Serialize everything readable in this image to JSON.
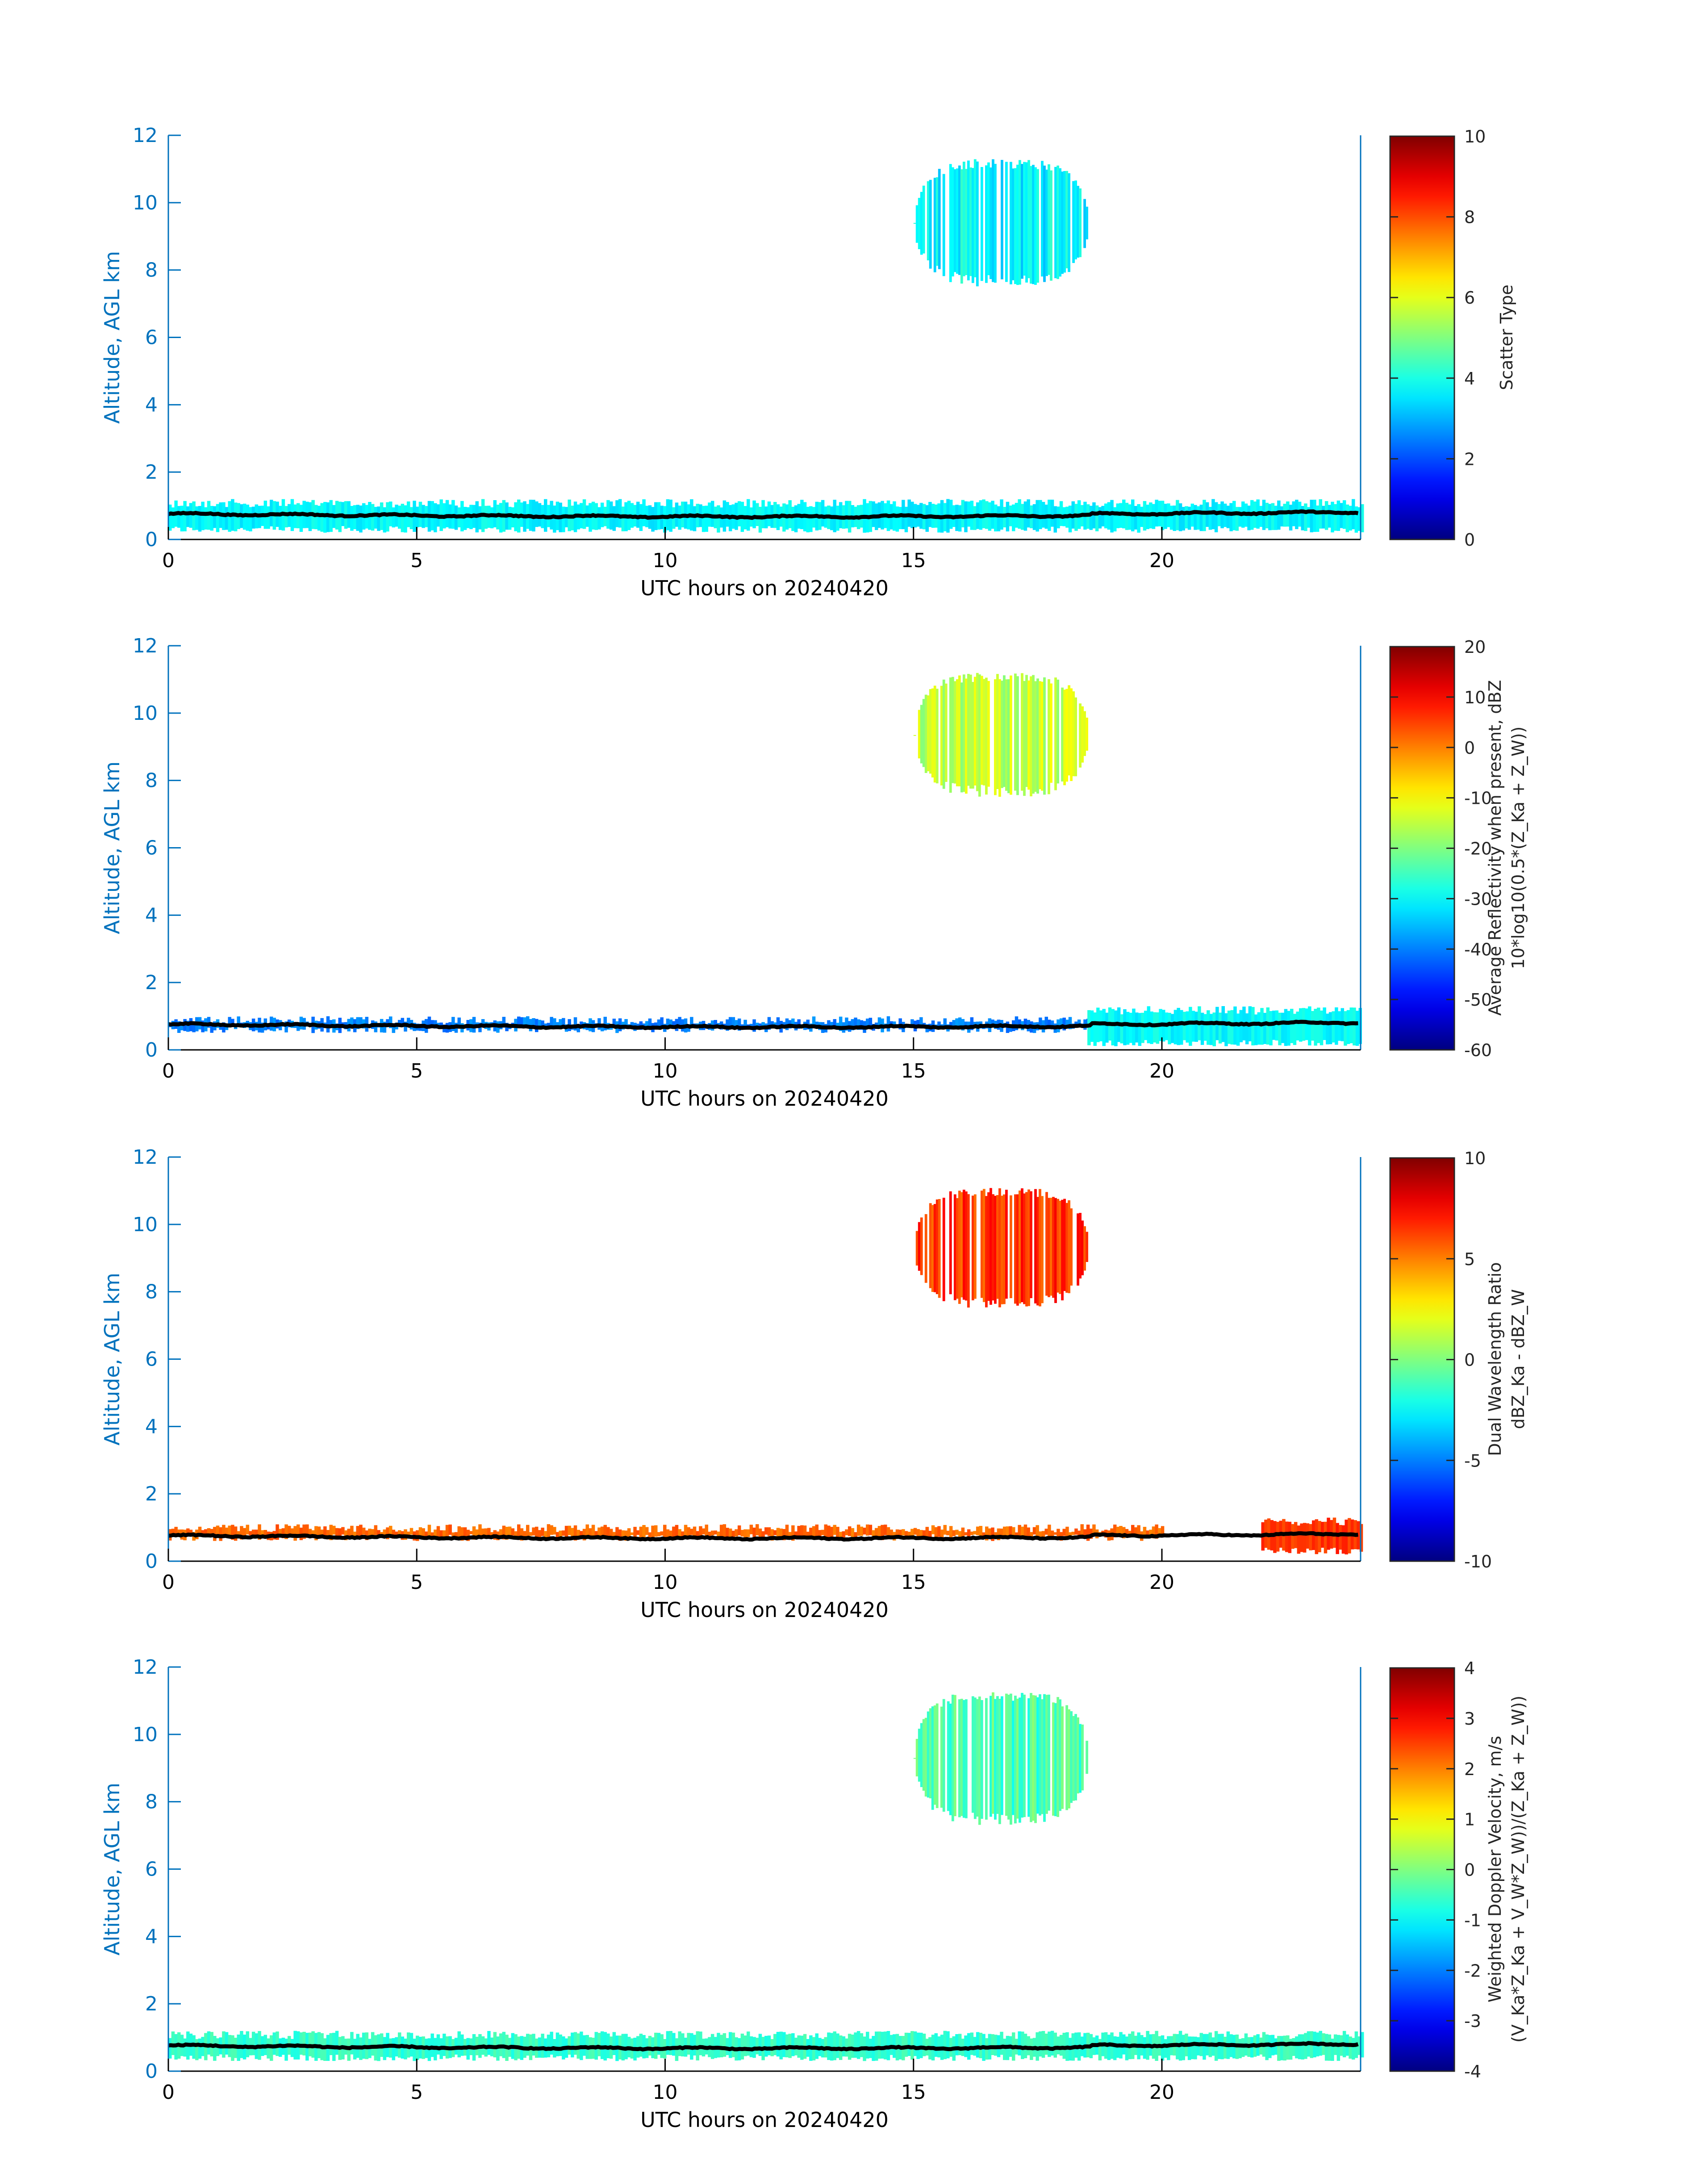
{
  "chart_data": [
    {
      "type": "heatmap",
      "xlabel": "UTC hours on 20240420",
      "ylabel": "Altitude, AGL km",
      "xlim": [
        0,
        24
      ],
      "ylim": [
        0,
        12
      ],
      "xticks": [
        0,
        5,
        10,
        15,
        20
      ],
      "yticks": [
        0,
        2,
        4,
        6,
        8,
        10,
        12
      ],
      "colorbar": {
        "label": [
          "Scatter Type"
        ],
        "range": [
          0,
          10
        ],
        "ticks": [
          0,
          2,
          4,
          6,
          8,
          10
        ],
        "colormap": "jet"
      },
      "fields": [
        {
          "x_range": [
            0,
            24
          ],
          "y_range": [
            0.2,
            1.2
          ],
          "value": 3.7
        },
        {
          "x_range": [
            15,
            18.5
          ],
          "y_range": [
            7.5,
            11.3
          ],
          "value": 3.7
        }
      ]
    },
    {
      "type": "heatmap",
      "xlabel": "UTC hours on 20240420",
      "ylabel": "Altitude, AGL km",
      "xlim": [
        0,
        24
      ],
      "ylim": [
        0,
        12
      ],
      "xticks": [
        0,
        5,
        10,
        15,
        20
      ],
      "yticks": [
        0,
        2,
        4,
        6,
        8,
        10,
        12
      ],
      "colorbar": {
        "label": [
          "Average Reflectivity when present, dBZ",
          "10*log10(0.5*(Z_Ka + Z_W))"
        ],
        "range": [
          -60,
          20
        ],
        "ticks": [
          -60,
          -50,
          -40,
          -30,
          -20,
          -10,
          0,
          10,
          20
        ],
        "colormap": "jet"
      },
      "fields": [
        {
          "x_range": [
            0,
            18.5
          ],
          "y_range": [
            0.5,
            1.0
          ],
          "value": -40
        },
        {
          "x_range": [
            18.5,
            24
          ],
          "y_range": [
            0.1,
            1.3
          ],
          "value": -30
        },
        {
          "x_range": [
            15,
            18.5
          ],
          "y_range": [
            7.5,
            11.2
          ],
          "value": -15
        }
      ]
    },
    {
      "type": "heatmap",
      "xlabel": "UTC hours on 20240420",
      "ylabel": "Altitude, AGL km",
      "xlim": [
        0,
        24
      ],
      "ylim": [
        0,
        12
      ],
      "xticks": [
        0,
        5,
        10,
        15,
        20
      ],
      "yticks": [
        0,
        2,
        4,
        6,
        8,
        10,
        12
      ],
      "colorbar": {
        "label": [
          "Dual Wavelength Ratio",
          "dBZ_Ka - dBZ_W"
        ],
        "range": [
          -10,
          10
        ],
        "ticks": [
          -10,
          -5,
          0,
          5,
          10
        ],
        "colormap": "jet"
      },
      "fields": [
        {
          "x_range": [
            0,
            20
          ],
          "y_range": [
            0.6,
            1.1
          ],
          "value": 5.5
        },
        {
          "x_range": [
            22,
            24
          ],
          "y_range": [
            0.2,
            1.3
          ],
          "value": 6.5
        },
        {
          "x_range": [
            15,
            18.5
          ],
          "y_range": [
            7.5,
            11.1
          ],
          "value": 6.5
        }
      ]
    },
    {
      "type": "heatmap",
      "xlabel": "UTC hours on 20240420",
      "ylabel": "Altitude, AGL km",
      "xlim": [
        0,
        24
      ],
      "ylim": [
        0,
        12
      ],
      "xticks": [
        0,
        5,
        10,
        15,
        20
      ],
      "yticks": [
        0,
        2,
        4,
        6,
        8,
        10,
        12
      ],
      "colorbar": {
        "label": [
          "Weighted Doppler Velocity, m/s",
          "(V_Ka*Z_Ka + V_W*Z_W))/(Z_Ka + Z_W))"
        ],
        "range": [
          -4,
          4
        ],
        "ticks": [
          -4,
          -3,
          -2,
          -1,
          0,
          1,
          2,
          3,
          4
        ],
        "colormap": "jet"
      },
      "fields": [
        {
          "x_range": [
            0,
            24
          ],
          "y_range": [
            0.3,
            1.2
          ],
          "value": -0.6
        },
        {
          "x_range": [
            15,
            18.5
          ],
          "y_range": [
            7.3,
            11.3
          ],
          "value": -0.4
        }
      ]
    }
  ]
}
